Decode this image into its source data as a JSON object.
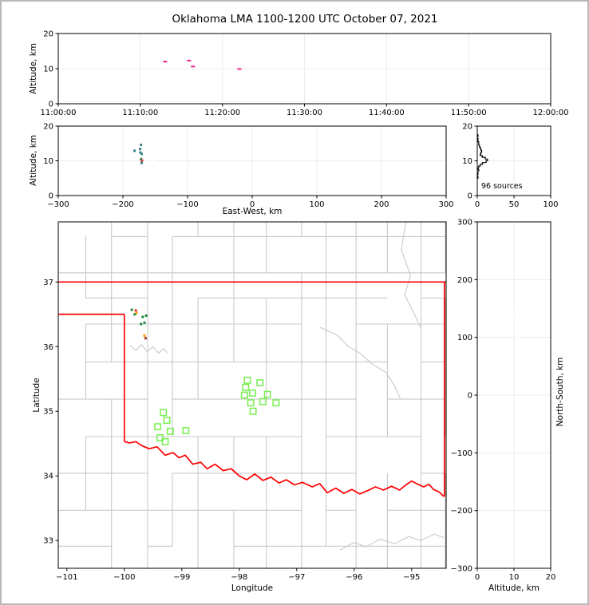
{
  "title": "Oklahoma LMA 1100-1200 UTC October 07, 2021",
  "colors": {
    "grid": "#ececec",
    "spine": "#000000",
    "county": "#c9c9c9",
    "river": "#c9c9c9",
    "state_border": "#ff0000",
    "station": "#77f050",
    "histogram": "#000000",
    "ghost": "#ffffff",
    "time_points": "#ee1e8c",
    "teal_points": "#3b8183",
    "green_points": "#1e8640",
    "orange_points": "#ff9a00",
    "red_points": "#e22f2f",
    "darkred_points": "#a03232"
  },
  "chart_data": [
    {
      "id": "time_height",
      "type": "scatter",
      "xlabel": "",
      "ylabel": "Altitude, km",
      "xlim": [
        0,
        3600
      ],
      "ylim": [
        0,
        20
      ],
      "xticks": {
        "values": [
          0,
          600,
          1200,
          1800,
          2400,
          3000,
          3600
        ],
        "labels": [
          "11:00:00",
          "11:10:00",
          "11:20:00",
          "11:30:00",
          "11:40:00",
          "11:50:00",
          "12:00:00"
        ]
      },
      "yticks": {
        "values": [
          0,
          10,
          20
        ],
        "labels": [
          "0",
          "10",
          "20"
        ]
      },
      "marker": "dash",
      "points": [
        {
          "x": 781,
          "y": 12.0,
          "color": "#ee1e8c"
        },
        {
          "x": 956,
          "y": 12.3,
          "color": "#ee1e8c"
        },
        {
          "x": 985,
          "y": 10.6,
          "color": "#ee1e8c"
        },
        {
          "x": 1324,
          "y": 9.9,
          "color": "#ee1e8c"
        }
      ]
    },
    {
      "id": "eastwest_height",
      "type": "scatter",
      "xlabel": "East-West, km",
      "ylabel": "Altitude, km",
      "xlim": [
        -300,
        300
      ],
      "ylim": [
        0,
        20
      ],
      "xticks": {
        "values": [
          -300,
          -200,
          -100,
          0,
          100,
          200,
          300
        ],
        "labels": [
          "−300",
          "−200",
          "−100",
          "0",
          "100",
          "200",
          "300"
        ]
      },
      "yticks": {
        "values": [
          0,
          10,
          20
        ],
        "labels": [
          "0",
          "10",
          "20"
        ]
      },
      "marker": "sq",
      "points": [
        {
          "x": -182,
          "y": 12.9,
          "color": "#3b8183"
        },
        {
          "x": -173.5,
          "y": 13.4,
          "color": "#3b8183"
        },
        {
          "x": -172,
          "y": 14.6,
          "color": "#3b8183"
        },
        {
          "x": -173,
          "y": 12.4,
          "color": "#3b8183"
        },
        {
          "x": -171,
          "y": 12.0,
          "color": "#3b8183"
        },
        {
          "x": -172,
          "y": 10.5,
          "color": "#2e8b57"
        },
        {
          "x": -170.5,
          "y": 10.1,
          "color": "#e22f2f"
        },
        {
          "x": -171,
          "y": 9.4,
          "color": "#3b8183"
        }
      ],
      "ghost_points": [
        {
          "x": -159,
          "y": 10
        },
        {
          "x": -152,
          "y": 10
        }
      ]
    },
    {
      "id": "altitude_histogram",
      "type": "histogram",
      "annotation": "96 sources",
      "xlabel": "",
      "ylabel": "",
      "xlim": [
        0,
        100
      ],
      "ylim": [
        0,
        20
      ],
      "xticks": {
        "values": [
          0,
          50,
          100
        ],
        "labels": [
          "0",
          "50",
          "100"
        ]
      },
      "yticks": {
        "values": [
          0,
          10,
          20
        ],
        "labels": [
          "0",
          "10",
          "20"
        ]
      },
      "profile_alt_count": [
        [
          5.0,
          1
        ],
        [
          5.5,
          0
        ],
        [
          6.0,
          1
        ],
        [
          6.5,
          0
        ],
        [
          7.0,
          2
        ],
        [
          7.5,
          1
        ],
        [
          8.0,
          2
        ],
        [
          8.5,
          4
        ],
        [
          9.0,
          7
        ],
        [
          9.5,
          12
        ],
        [
          10.0,
          14
        ],
        [
          10.5,
          11
        ],
        [
          11.0,
          7
        ],
        [
          11.5,
          4
        ],
        [
          12.0,
          5
        ],
        [
          12.5,
          6
        ],
        [
          13.0,
          5
        ],
        [
          13.5,
          4
        ],
        [
          14.0,
          3
        ],
        [
          14.5,
          2
        ],
        [
          15.0,
          2
        ],
        [
          15.5,
          1
        ],
        [
          16.0,
          1
        ],
        [
          16.5,
          0
        ],
        [
          17.0,
          1
        ],
        [
          17.5,
          0
        ]
      ]
    },
    {
      "id": "plan_map",
      "type": "scatter-map",
      "xlabel": "Longitude",
      "ylabel": "Latitude",
      "xlim": [
        -101.15,
        -94.4
      ],
      "ylim": [
        32.57,
        37.93
      ],
      "xticks": {
        "values": [
          -101,
          -100,
          -99,
          -98,
          -97,
          -96,
          -95
        ],
        "labels": [
          "−101",
          "−100",
          "−99",
          "−98",
          "−97",
          "−96",
          "−95"
        ]
      },
      "yticks": {
        "values": [
          33,
          34,
          35,
          36,
          37
        ],
        "labels": [
          "33",
          "34",
          "35",
          "36",
          "37"
        ]
      },
      "marker": "sq",
      "points": [
        {
          "x": -99.87,
          "y": 36.57,
          "color": "#1e8640"
        },
        {
          "x": -99.8,
          "y": 36.56,
          "color": "#e22f2f"
        },
        {
          "x": -99.79,
          "y": 36.52,
          "color": "#ff9a00"
        },
        {
          "x": -99.82,
          "y": 36.5,
          "color": "#1e8640"
        },
        {
          "x": -99.68,
          "y": 36.46,
          "color": "#1e8640"
        },
        {
          "x": -99.62,
          "y": 36.48,
          "color": "#1e8640"
        },
        {
          "x": -99.71,
          "y": 36.35,
          "color": "#1e8640"
        },
        {
          "x": -99.65,
          "y": 36.37,
          "color": "#1e8640"
        },
        {
          "x": -99.65,
          "y": 36.17,
          "color": "#ff9a00"
        },
        {
          "x": -99.63,
          "y": 36.13,
          "color": "#a03232"
        }
      ],
      "stations": [
        [
          -97.86,
          35.48
        ],
        [
          -97.64,
          35.44
        ],
        [
          -97.89,
          35.37
        ],
        [
          -97.77,
          35.28
        ],
        [
          -97.91,
          35.25
        ],
        [
          -97.51,
          35.26
        ],
        [
          -97.8,
          35.13
        ],
        [
          -97.59,
          35.15
        ],
        [
          -97.36,
          35.13
        ],
        [
          -97.76,
          35.0
        ],
        [
          -99.32,
          34.98
        ],
        [
          -99.26,
          34.86
        ],
        [
          -99.42,
          34.76
        ],
        [
          -99.2,
          34.69
        ],
        [
          -98.93,
          34.7
        ],
        [
          -99.38,
          34.59
        ],
        [
          -99.29,
          34.53
        ]
      ],
      "state_borders": {
        "north_line": {
          "lat": 37.0,
          "lon0": -101.15,
          "lon1": -94.4
        },
        "panhandle_line": {
          "lat": 36.5,
          "lon0": -101.15,
          "lon1": -100.0
        },
        "west_vertical": {
          "lon": -100.0,
          "lat0": 36.5,
          "lat1": 34.53
        },
        "east_vertical": {
          "lon": -94.43,
          "lat0": 37.0,
          "lat1": 33.68
        },
        "red_river": [
          [
            -100.0,
            34.53
          ],
          [
            -99.91,
            34.51
          ],
          [
            -99.8,
            34.53
          ],
          [
            -99.7,
            34.47
          ],
          [
            -99.57,
            34.42
          ],
          [
            -99.43,
            34.45
          ],
          [
            -99.29,
            34.32
          ],
          [
            -99.15,
            34.36
          ],
          [
            -99.05,
            34.28
          ],
          [
            -98.94,
            34.32
          ],
          [
            -98.81,
            34.18
          ],
          [
            -98.67,
            34.21
          ],
          [
            -98.56,
            34.11
          ],
          [
            -98.42,
            34.18
          ],
          [
            -98.28,
            34.08
          ],
          [
            -98.14,
            34.11
          ],
          [
            -98.0,
            34.0
          ],
          [
            -97.87,
            33.94
          ],
          [
            -97.73,
            34.03
          ],
          [
            -97.59,
            33.93
          ],
          [
            -97.45,
            33.98
          ],
          [
            -97.31,
            33.89
          ],
          [
            -97.18,
            33.94
          ],
          [
            -97.04,
            33.86
          ],
          [
            -96.9,
            33.9
          ],
          [
            -96.73,
            33.83
          ],
          [
            -96.6,
            33.88
          ],
          [
            -96.47,
            33.74
          ],
          [
            -96.32,
            33.81
          ],
          [
            -96.18,
            33.73
          ],
          [
            -96.04,
            33.79
          ],
          [
            -95.9,
            33.72
          ],
          [
            -95.77,
            33.77
          ],
          [
            -95.63,
            33.83
          ],
          [
            -95.49,
            33.78
          ],
          [
            -95.35,
            33.84
          ],
          [
            -95.21,
            33.78
          ],
          [
            -95.1,
            33.86
          ],
          [
            -95.0,
            33.92
          ],
          [
            -94.89,
            33.87
          ],
          [
            -94.79,
            33.83
          ],
          [
            -94.7,
            33.87
          ],
          [
            -94.62,
            33.79
          ],
          [
            -94.52,
            33.75
          ],
          [
            -94.44,
            33.68
          ]
        ]
      },
      "rivers": [
        [
          [
            -99.9,
            36.02
          ],
          [
            -99.8,
            35.94
          ],
          [
            -99.7,
            36.03
          ],
          [
            -99.6,
            35.92
          ],
          [
            -99.5,
            36.0
          ],
          [
            -99.4,
            35.9
          ],
          [
            -99.32,
            35.97
          ],
          [
            -99.25,
            35.9
          ]
        ],
        [
          [
            -96.6,
            36.3
          ],
          [
            -96.3,
            36.18
          ],
          [
            -96.1,
            36.0
          ],
          [
            -95.9,
            35.9
          ],
          [
            -95.7,
            35.74
          ],
          [
            -95.45,
            35.6
          ],
          [
            -95.3,
            35.4
          ],
          [
            -95.2,
            35.2
          ]
        ],
        [
          [
            -95.1,
            37.93
          ],
          [
            -95.18,
            37.5
          ],
          [
            -95.02,
            37.1
          ],
          [
            -95.12,
            36.8
          ],
          [
            -94.95,
            36.5
          ],
          [
            -94.85,
            36.3
          ]
        ],
        [
          [
            -96.25,
            32.85
          ],
          [
            -96.0,
            32.97
          ],
          [
            -95.8,
            32.9
          ],
          [
            -95.55,
            33.02
          ],
          [
            -95.3,
            32.95
          ],
          [
            -95.05,
            33.06
          ],
          [
            -94.85,
            33.0
          ],
          [
            -94.6,
            33.1
          ],
          [
            -94.44,
            33.04
          ]
        ]
      ]
    },
    {
      "id": "northsouth_height",
      "type": "scatter",
      "xlabel": "Altitude, km",
      "ylabel": "North-South, km",
      "xlim": [
        0,
        20
      ],
      "ylim": [
        -300,
        300
      ],
      "xticks": {
        "values": [
          0,
          10,
          20
        ],
        "labels": [
          "0",
          "10",
          "20"
        ]
      },
      "yticks": {
        "values": [
          -300,
          -200,
          -100,
          0,
          100,
          200,
          300
        ],
        "labels": [
          "−300",
          "−200",
          "−100",
          "0",
          "100",
          "200",
          "300"
        ]
      },
      "marker": "sq",
      "points": [],
      "ghost_points": [
        {
          "x": 10,
          "y": 150
        },
        {
          "x": 10,
          "y": 137
        },
        {
          "x": 10,
          "y": 125
        },
        {
          "x": 10.3,
          "y": 113
        },
        {
          "x": 11,
          "y": 100
        }
      ]
    }
  ]
}
